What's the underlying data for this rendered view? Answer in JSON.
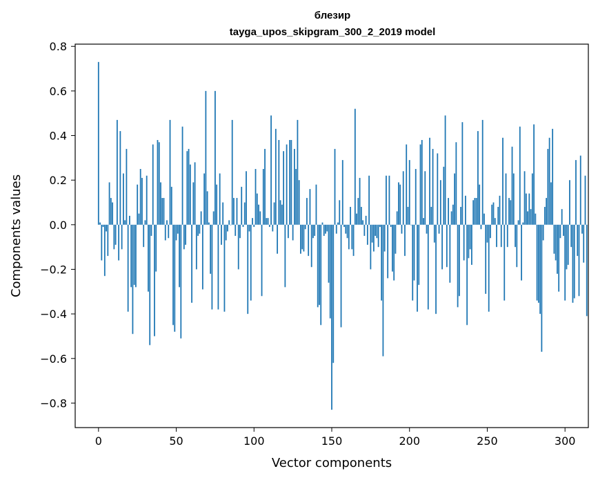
{
  "chart_data": {
    "type": "bar",
    "title": "блезир",
    "subtitle": "tayga_upos_skipgram_300_2_2019 model",
    "xlabel": "Vector components",
    "ylabel": "Components values",
    "xlim": [
      -15,
      315
    ],
    "ylim": [
      -0.91,
      0.81
    ],
    "xticks": [
      0,
      50,
      100,
      150,
      200,
      250,
      300
    ],
    "xtick_labels": [
      "0",
      "50",
      "100",
      "150",
      "200",
      "250",
      "300"
    ],
    "yticks": [
      -0.8,
      -0.6,
      -0.4,
      -0.2,
      0.0,
      0.2,
      0.4,
      0.6,
      0.8
    ],
    "ytick_labels": [
      "−0.8",
      "−0.6",
      "−0.4",
      "−0.2",
      "0.0",
      "0.2",
      "0.4",
      "0.6",
      "0.8"
    ],
    "grid": false,
    "bar_color": "#1f77b4",
    "x_start": 0,
    "values": [
      0.73,
      0.01,
      -0.16,
      -0.01,
      -0.23,
      -0.03,
      -0.14,
      0.19,
      0.12,
      0.1,
      -0.11,
      -0.09,
      0.47,
      -0.16,
      0.42,
      -0.11,
      0.23,
      0.02,
      0.34,
      -0.39,
      0.04,
      -0.28,
      -0.49,
      -0.27,
      -0.28,
      0.18,
      0.05,
      0.25,
      0.21,
      -0.1,
      0.02,
      0.22,
      -0.3,
      -0.54,
      -0.05,
      0.36,
      -0.5,
      -0.21,
      0.38,
      0.37,
      0.19,
      0.12,
      0.12,
      -0.07,
      0.02,
      -0.06,
      0.47,
      0.17,
      -0.45,
      -0.48,
      -0.07,
      -0.04,
      -0.28,
      -0.51,
      0.44,
      -0.11,
      -0.09,
      0.33,
      0.34,
      0.27,
      -0.35,
      0.19,
      0.28,
      -0.2,
      -0.05,
      -0.04,
      0.06,
      -0.29,
      0.23,
      0.6,
      0.15,
      0.01,
      -0.22,
      -0.38,
      0.06,
      0.6,
      0.18,
      -0.38,
      0.23,
      -0.09,
      0.1,
      -0.39,
      -0.07,
      -0.03,
      0.02,
      0.0,
      0.47,
      0.12,
      -0.05,
      0.12,
      -0.2,
      -0.06,
      0.17,
      -0.01,
      0.1,
      0.24,
      -0.4,
      -0.03,
      -0.34,
      0.03,
      -0.01,
      0.25,
      0.14,
      0.09,
      0.06,
      -0.32,
      0.25,
      0.34,
      0.03,
      0.03,
      -0.01,
      0.49,
      -0.03,
      0.1,
      0.43,
      -0.13,
      0.38,
      0.11,
      0.09,
      0.33,
      -0.28,
      0.36,
      -0.06,
      0.38,
      0.38,
      -0.07,
      0.34,
      0.25,
      0.47,
      0.2,
      -0.13,
      -0.11,
      -0.12,
      -0.02,
      0.12,
      -0.14,
      0.16,
      -0.19,
      -0.06,
      -0.05,
      0.18,
      -0.37,
      -0.36,
      -0.45,
      0.01,
      -0.05,
      -0.04,
      -0.03,
      -0.26,
      -0.42,
      -0.83,
      -0.62,
      0.34,
      -0.04,
      0.01,
      0.11,
      -0.46,
      0.29,
      -0.01,
      -0.04,
      -0.06,
      -0.11,
      0.08,
      -0.11,
      -0.14,
      0.52,
      0.05,
      0.12,
      0.21,
      0.08,
      0.02,
      -0.05,
      0.04,
      -0.09,
      0.22,
      -0.2,
      -0.08,
      -0.12,
      -0.05,
      -0.06,
      -0.1,
      -0.01,
      -0.34,
      -0.59,
      -0.12,
      0.22,
      -0.24,
      0.22,
      -0.01,
      -0.21,
      -0.25,
      -0.13,
      0.06,
      0.19,
      0.18,
      -0.04,
      0.24,
      -0.14,
      0.36,
      0.08,
      0.29,
      0.0,
      -0.34,
      -0.25,
      0.25,
      -0.39,
      -0.27,
      0.36,
      0.38,
      0.03,
      0.24,
      -0.04,
      -0.38,
      0.39,
      0.08,
      0.34,
      -0.08,
      -0.4,
      0.32,
      -0.04,
      0.2,
      -0.2,
      0.26,
      0.49,
      -0.19,
      0.12,
      -0.26,
      0.06,
      0.09,
      0.23,
      0.37,
      -0.37,
      -0.32,
      0.08,
      0.46,
      -0.16,
      0.13,
      -0.45,
      -0.15,
      -0.11,
      -0.18,
      0.11,
      0.12,
      0.12,
      0.42,
      0.18,
      -0.02,
      0.47,
      0.05,
      -0.31,
      -0.08,
      -0.39,
      -0.06,
      0.09,
      0.1,
      0.03,
      -0.1,
      0.08,
      0.13,
      -0.1,
      0.39,
      -0.34,
      0.23,
      -0.1,
      0.12,
      0.11,
      0.35,
      0.23,
      -0.1,
      -0.19,
      0.02,
      0.44,
      -0.25,
      0.01,
      0.24,
      0.14,
      0.06,
      0.14,
      0.07,
      0.23,
      0.45,
      0.05,
      -0.34,
      -0.35,
      -0.4,
      -0.57,
      -0.07,
      0.08,
      0.12,
      0.34,
      0.39,
      0.19,
      0.43,
      -0.13,
      -0.16,
      -0.22,
      -0.3,
      -0.06,
      0.07,
      -0.05,
      -0.34,
      -0.2,
      -0.18,
      0.2,
      -0.1,
      -0.35,
      -0.33,
      0.29,
      -0.14,
      -0.32,
      0.31,
      -0.04,
      -0.17,
      0.22,
      -0.41
    ]
  }
}
